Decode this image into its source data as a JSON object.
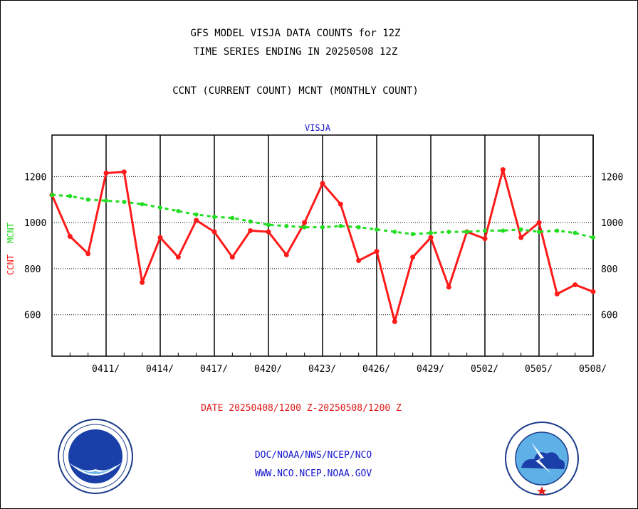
{
  "header": {
    "line1": "GFS MODEL VISJA DATA COUNTS for 12Z",
    "line2": "TIME SERIES ENDING IN 20250508 12Z",
    "line3": "CCNT (CURRENT COUNT) MCNT (MONTHLY COUNT)"
  },
  "chart_data": {
    "type": "line",
    "title": "VISJA",
    "ylabel_ccnt": "CCNT",
    "ylabel_mcnt": "MCNT",
    "xlabel": "DATE 20250408/1200 Z-20250508/1200 Z",
    "ylim": [
      420,
      1380
    ],
    "yticks": [
      600,
      800,
      1000,
      1200
    ],
    "x_start": "2025-04-08",
    "x_end": "2025-05-08",
    "xtick_labels": [
      "0411/",
      "0414/",
      "0417/",
      "0420/",
      "0423/",
      "0426/",
      "0429/",
      "0502/",
      "0505/",
      "0508/"
    ],
    "grid": true,
    "colors": {
      "ccnt": "#ff1a1a",
      "mcnt": "#22dd22"
    },
    "series": [
      {
        "name": "CCNT",
        "x": [
          "2025-04-08",
          "2025-04-09",
          "2025-04-10",
          "2025-04-11",
          "2025-04-12",
          "2025-04-13",
          "2025-04-14",
          "2025-04-15",
          "2025-04-16",
          "2025-04-17",
          "2025-04-18",
          "2025-04-19",
          "2025-04-20",
          "2025-04-21",
          "2025-04-22",
          "2025-04-23",
          "2025-04-24",
          "2025-04-25",
          "2025-04-26",
          "2025-04-27",
          "2025-04-28",
          "2025-04-29",
          "2025-04-30",
          "2025-05-01",
          "2025-05-02",
          "2025-05-03",
          "2025-05-04",
          "2025-05-05",
          "2025-05-06",
          "2025-05-07",
          "2025-05-08"
        ],
        "values": [
          1120,
          940,
          865,
          1215,
          1220,
          740,
          935,
          850,
          1010,
          960,
          850,
          965,
          960,
          860,
          1000,
          1170,
          1080,
          835,
          875,
          570,
          850,
          935,
          720,
          960,
          930,
          1230,
          935,
          1000,
          690,
          730,
          700
        ]
      },
      {
        "name": "MCNT",
        "x": [
          "2025-04-08",
          "2025-04-09",
          "2025-04-10",
          "2025-04-11",
          "2025-04-12",
          "2025-04-13",
          "2025-04-14",
          "2025-04-15",
          "2025-04-16",
          "2025-04-17",
          "2025-04-18",
          "2025-04-19",
          "2025-04-20",
          "2025-04-21",
          "2025-04-22",
          "2025-04-23",
          "2025-04-24",
          "2025-04-25",
          "2025-04-26",
          "2025-04-27",
          "2025-04-28",
          "2025-04-29",
          "2025-04-30",
          "2025-05-01",
          "2025-05-02",
          "2025-05-03",
          "2025-05-04",
          "2025-05-05",
          "2025-05-06",
          "2025-05-07",
          "2025-05-08"
        ],
        "values": [
          1120,
          1115,
          1100,
          1095,
          1090,
          1080,
          1065,
          1050,
          1035,
          1025,
          1020,
          1005,
          990,
          985,
          980,
          980,
          985,
          980,
          970,
          960,
          950,
          955,
          960,
          960,
          965,
          965,
          970,
          960,
          965,
          955,
          935
        ]
      }
    ]
  },
  "footer": {
    "line1": "DOC/NOAA/NWS/NCEP/NCO",
    "line2": "WWW.NCO.NCEP.NOAA.GOV"
  },
  "logos": {
    "left": "noaa-logo-icon",
    "right": "national-weather-service-logo-icon"
  }
}
